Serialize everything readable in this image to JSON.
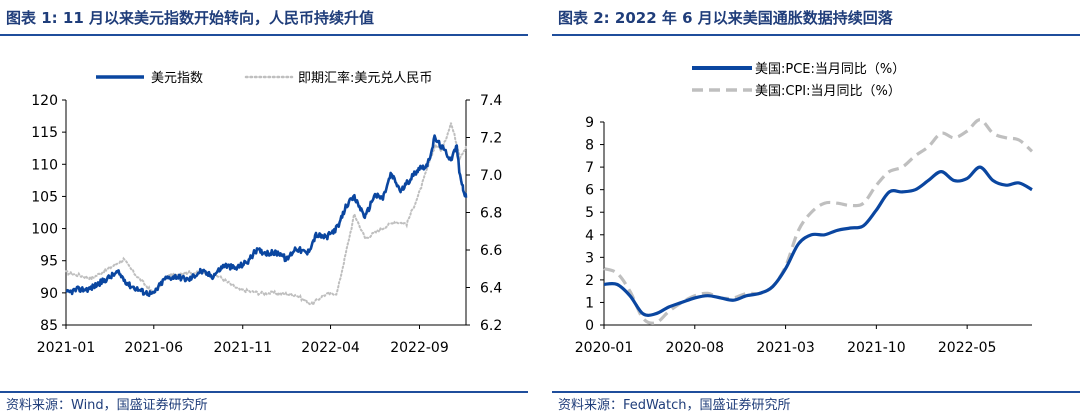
{
  "left": {
    "title": "图表 1:  11 月以来美元指数开始转向，人民币持续升值",
    "source": "资料来源：Wind，国盛证券研究所",
    "chart_data": {
      "type": "line",
      "x_ticks": [
        "2021-01",
        "2021-06",
        "2021-11",
        "2022-04",
        "2022-09"
      ],
      "x_range": [
        "2021-01-01",
        "2022-11-20"
      ],
      "y_left": {
        "ticks": [
          85,
          90,
          95,
          100,
          105,
          110,
          115,
          120
        ],
        "ylim": [
          85,
          120
        ]
      },
      "y_right": {
        "ticks": [
          "6.2",
          "6.4",
          "6.6",
          "6.8",
          "7.0",
          "7.2",
          "7.4"
        ],
        "ylim": [
          6.2,
          7.4
        ]
      },
      "legend_position": "top",
      "series": [
        {
          "name": "美元指数",
          "axis": "left",
          "color": "#0a46a0",
          "style": "solid",
          "points": [
            [
              "2021-01-01",
              89.9
            ],
            [
              "2021-01-20",
              90.5
            ],
            [
              "2021-02-10",
              90.6
            ],
            [
              "2021-03-05",
              91.8
            ],
            [
              "2021-03-31",
              93.2
            ],
            [
              "2021-04-20",
              91.2
            ],
            [
              "2021-05-15",
              90.1
            ],
            [
              "2021-05-31",
              89.8
            ],
            [
              "2021-06-20",
              92.2
            ],
            [
              "2021-07-10",
              92.6
            ],
            [
              "2021-07-31",
              92.0
            ],
            [
              "2021-08-20",
              93.4
            ],
            [
              "2021-09-10",
              92.6
            ],
            [
              "2021-09-30",
              94.3
            ],
            [
              "2021-10-20",
              93.8
            ],
            [
              "2021-11-10",
              94.9
            ],
            [
              "2021-11-24",
              96.6
            ],
            [
              "2021-12-15",
              96.2
            ],
            [
              "2022-01-05",
              96.2
            ],
            [
              "2022-01-15",
              95.1
            ],
            [
              "2022-01-31",
              97.0
            ],
            [
              "2022-02-20",
              96.1
            ],
            [
              "2022-03-07",
              99.0
            ],
            [
              "2022-03-25",
              98.6
            ],
            [
              "2022-04-15",
              100.4
            ],
            [
              "2022-04-28",
              103.6
            ],
            [
              "2022-05-12",
              104.8
            ],
            [
              "2022-05-31",
              101.8
            ],
            [
              "2022-06-15",
              105.2
            ],
            [
              "2022-06-30",
              104.7
            ],
            [
              "2022-07-14",
              108.5
            ],
            [
              "2022-07-31",
              105.8
            ],
            [
              "2022-08-20",
              108.2
            ],
            [
              "2022-09-01",
              109.5
            ],
            [
              "2022-09-15",
              109.8
            ],
            [
              "2022-09-27",
              114.1
            ],
            [
              "2022-10-10",
              112.6
            ],
            [
              "2022-10-25",
              110.8
            ],
            [
              "2022-11-04",
              112.8
            ],
            [
              "2022-11-10",
              107.9
            ],
            [
              "2022-11-15",
              106.3
            ],
            [
              "2022-11-20",
              104.8
            ]
          ]
        },
        {
          "name": "即期汇率:美元兑人民币",
          "axis": "right",
          "color": "#bfbfbf",
          "style": "dotted",
          "points": [
            [
              "2021-01-01",
              6.48
            ],
            [
              "2021-02-15",
              6.45
            ],
            [
              "2021-03-20",
              6.51
            ],
            [
              "2021-04-10",
              6.55
            ],
            [
              "2021-04-30",
              6.47
            ],
            [
              "2021-05-31",
              6.37
            ],
            [
              "2021-06-25",
              6.46
            ],
            [
              "2021-07-20",
              6.48
            ],
            [
              "2021-08-20",
              6.48
            ],
            [
              "2021-09-20",
              6.46
            ],
            [
              "2021-10-25",
              6.39
            ],
            [
              "2021-11-30",
              6.37
            ],
            [
              "2021-12-31",
              6.37
            ],
            [
              "2022-01-31",
              6.36
            ],
            [
              "2022-02-28",
              6.31
            ],
            [
              "2022-03-20",
              6.36
            ],
            [
              "2022-04-12",
              6.37
            ],
            [
              "2022-04-25",
              6.55
            ],
            [
              "2022-05-12",
              6.79
            ],
            [
              "2022-05-31",
              6.66
            ],
            [
              "2022-06-20",
              6.7
            ],
            [
              "2022-07-20",
              6.75
            ],
            [
              "2022-08-10",
              6.74
            ],
            [
              "2022-08-31",
              6.9
            ],
            [
              "2022-09-28",
              7.16
            ],
            [
              "2022-10-10",
              7.13
            ],
            [
              "2022-10-25",
              7.28
            ],
            [
              "2022-11-10",
              7.1
            ],
            [
              "2022-11-20",
              7.15
            ]
          ]
        }
      ]
    }
  },
  "right": {
    "title": "图表 2:  2022 年 6 月以来美国通胀数据持续回落",
    "source": "资料来源：FedWatch，国盛证券研究所",
    "chart_data": {
      "type": "line",
      "x_ticks": [
        "2020-01",
        "2020-08",
        "2021-03",
        "2021-10",
        "2022-05"
      ],
      "x_range": [
        "2020-01",
        "2022-10"
      ],
      "ylim": [
        0,
        9
      ],
      "y_ticks": [
        0,
        1,
        2,
        3,
        4,
        5,
        6,
        7,
        8,
        9
      ],
      "legend_position": "top",
      "series": [
        {
          "name": "美国:PCE:当月同比（%）",
          "color": "#0a46a0",
          "style": "solid",
          "points": [
            [
              "2020-01",
              1.8
            ],
            [
              "2020-02",
              1.8
            ],
            [
              "2020-03",
              1.3
            ],
            [
              "2020-04",
              0.5
            ],
            [
              "2020-05",
              0.5
            ],
            [
              "2020-06",
              0.8
            ],
            [
              "2020-07",
              1.0
            ],
            [
              "2020-08",
              1.2
            ],
            [
              "2020-09",
              1.3
            ],
            [
              "2020-10",
              1.2
            ],
            [
              "2020-11",
              1.1
            ],
            [
              "2020-12",
              1.3
            ],
            [
              "2021-01",
              1.4
            ],
            [
              "2021-02",
              1.7
            ],
            [
              "2021-03",
              2.5
            ],
            [
              "2021-04",
              3.6
            ],
            [
              "2021-05",
              4.0
            ],
            [
              "2021-06",
              4.0
            ],
            [
              "2021-07",
              4.2
            ],
            [
              "2021-08",
              4.3
            ],
            [
              "2021-09",
              4.4
            ],
            [
              "2021-10",
              5.1
            ],
            [
              "2021-11",
              5.9
            ],
            [
              "2021-12",
              5.9
            ],
            [
              "2022-01",
              6.0
            ],
            [
              "2022-02",
              6.4
            ],
            [
              "2022-03",
              6.8
            ],
            [
              "2022-04",
              6.4
            ],
            [
              "2022-05",
              6.5
            ],
            [
              "2022-06",
              7.0
            ],
            [
              "2022-07",
              6.4
            ],
            [
              "2022-08",
              6.2
            ],
            [
              "2022-09",
              6.3
            ],
            [
              "2022-10",
              6.0
            ]
          ]
        },
        {
          "name": "美国:CPI:当月同比（%）",
          "color": "#bfbfbf",
          "style": "dashed",
          "points": [
            [
              "2020-01",
              2.5
            ],
            [
              "2020-02",
              2.3
            ],
            [
              "2020-03",
              1.5
            ],
            [
              "2020-04",
              0.3
            ],
            [
              "2020-05",
              0.1
            ],
            [
              "2020-06",
              0.6
            ],
            [
              "2020-07",
              1.0
            ],
            [
              "2020-08",
              1.3
            ],
            [
              "2020-09",
              1.4
            ],
            [
              "2020-10",
              1.2
            ],
            [
              "2020-11",
              1.2
            ],
            [
              "2020-12",
              1.4
            ],
            [
              "2021-01",
              1.4
            ],
            [
              "2021-02",
              1.7
            ],
            [
              "2021-03",
              2.6
            ],
            [
              "2021-04",
              4.2
            ],
            [
              "2021-05",
              5.0
            ],
            [
              "2021-06",
              5.4
            ],
            [
              "2021-07",
              5.4
            ],
            [
              "2021-08",
              5.3
            ],
            [
              "2021-09",
              5.4
            ],
            [
              "2021-10",
              6.2
            ],
            [
              "2021-11",
              6.8
            ],
            [
              "2021-12",
              7.0
            ],
            [
              "2022-01",
              7.5
            ],
            [
              "2022-02",
              7.9
            ],
            [
              "2022-03",
              8.5
            ],
            [
              "2022-04",
              8.3
            ],
            [
              "2022-05",
              8.6
            ],
            [
              "2022-06",
              9.1
            ],
            [
              "2022-07",
              8.5
            ],
            [
              "2022-08",
              8.3
            ],
            [
              "2022-09",
              8.2
            ],
            [
              "2022-10",
              7.7
            ]
          ]
        }
      ]
    }
  }
}
